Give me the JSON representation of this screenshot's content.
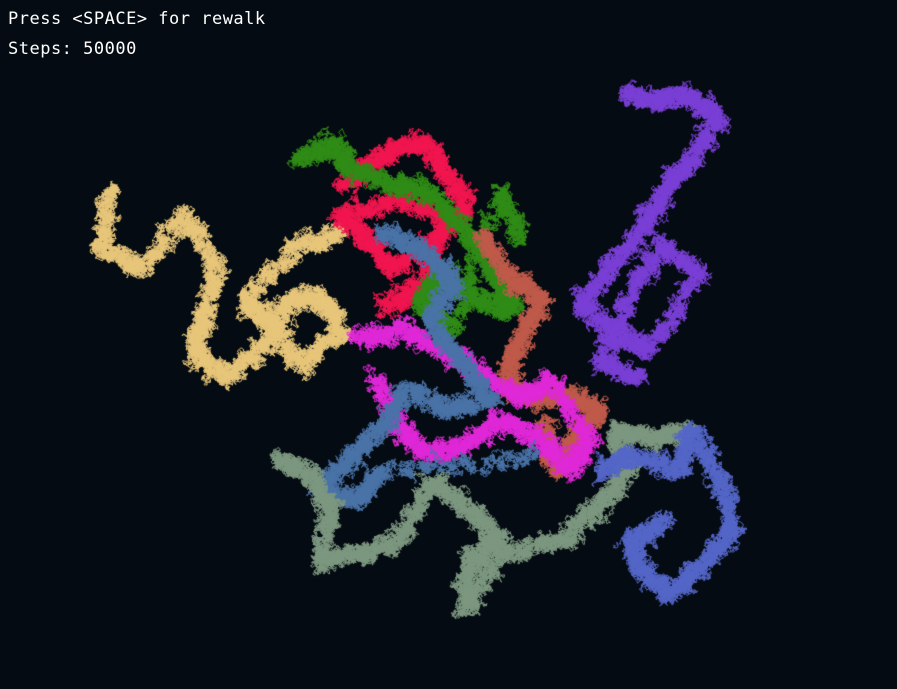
{
  "hud": {
    "instruction": "Press <SPACE> for rewalk",
    "steps_label": "Steps:",
    "steps_value": "50000"
  },
  "colors": {
    "background": "#040b12",
    "hud_text": "#ffffff",
    "walkers": [
      {
        "name": "yellow",
        "color": "#e8c67a"
      },
      {
        "name": "crimson",
        "color": "#f2154f"
      },
      {
        "name": "green",
        "color": "#2f8c16"
      },
      {
        "name": "violet",
        "color": "#7a3fd6"
      },
      {
        "name": "terracotta",
        "color": "#c05a4a"
      },
      {
        "name": "magenta",
        "color": "#e028d8"
      },
      {
        "name": "steel-blue",
        "color": "#4a73a8"
      },
      {
        "name": "sage",
        "color": "#7d9880"
      },
      {
        "name": "periwinkle",
        "color": "#5466c8"
      }
    ]
  },
  "controls": {
    "rewalk_key": "SPACE"
  }
}
